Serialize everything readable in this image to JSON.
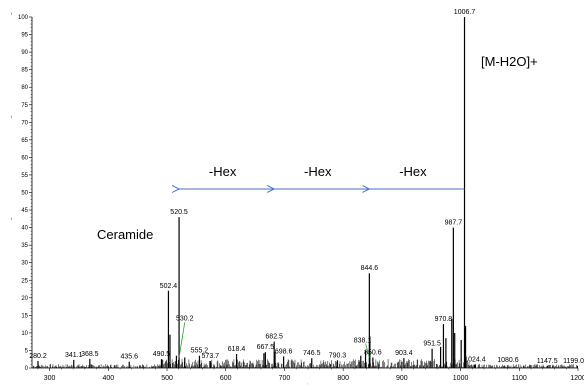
{
  "chart_data": {
    "type": "line",
    "title": "",
    "xlabel": "",
    "ylabel": "",
    "xlim": [
      270,
      1200
    ],
    "ylim": [
      0,
      100
    ],
    "x_ticks": [
      "300",
      "400",
      "500",
      "600",
      "700",
      "800",
      "900",
      "1000",
      "1100",
      "1200"
    ],
    "y_ticks": [
      "0",
      "5",
      "10",
      "15",
      "20",
      "25",
      "30",
      "35",
      "40",
      "45",
      "50",
      "55",
      "60",
      "65",
      "70",
      "75",
      "80",
      "85",
      "90",
      "95",
      "100"
    ],
    "side_labels": [
      "l",
      "l",
      "l"
    ],
    "axis_mark": ",",
    "peaks": [
      {
        "mz": 280.2,
        "intensity": 2.0,
        "label": "280.2"
      },
      {
        "mz": 341.1,
        "intensity": 2.3,
        "label": "341.1"
      },
      {
        "mz": 368.5,
        "intensity": 2.6,
        "label": "368.5"
      },
      {
        "mz": 435.6,
        "intensity": 1.8,
        "label": "435.6"
      },
      {
        "mz": 490.5,
        "intensity": 2.5,
        "label": "490.5"
      },
      {
        "mz": 502.4,
        "intensity": 22.0,
        "label": "502.4"
      },
      {
        "mz": 520.5,
        "intensity": 43.0,
        "label": "520.5"
      },
      {
        "mz": 530.2,
        "intensity": 3.0,
        "label": "530.2"
      },
      {
        "mz": 555.2,
        "intensity": 3.5,
        "label": "555.2"
      },
      {
        "mz": 573.7,
        "intensity": 2.0,
        "label": "573.7"
      },
      {
        "mz": 618.4,
        "intensity": 4.0,
        "label": "618.4"
      },
      {
        "mz": 667.5,
        "intensity": 4.5,
        "label": "667.5"
      },
      {
        "mz": 682.5,
        "intensity": 7.5,
        "label": "682.5"
      },
      {
        "mz": 698.6,
        "intensity": 3.3,
        "label": "698.6"
      },
      {
        "mz": 746.5,
        "intensity": 2.8,
        "label": "746.5"
      },
      {
        "mz": 790.3,
        "intensity": 2.2,
        "label": "790.3"
      },
      {
        "mz": 838.1,
        "intensity": 5.0,
        "label": "838.1"
      },
      {
        "mz": 844.6,
        "intensity": 27.0,
        "label": "844.6"
      },
      {
        "mz": 850.6,
        "intensity": 3.0,
        "label": "850.6"
      },
      {
        "mz": 903.4,
        "intensity": 2.8,
        "label": "903.4"
      },
      {
        "mz": 951.5,
        "intensity": 5.5,
        "label": "951.5"
      },
      {
        "mz": 970.8,
        "intensity": 12.5,
        "label": "970.8"
      },
      {
        "mz": 987.7,
        "intensity": 40.0,
        "label": "987.7"
      },
      {
        "mz": 1006.7,
        "intensity": 100.0,
        "label": "1006.7"
      },
      {
        "mz": 1024.4,
        "intensity": 1.0,
        "label": "1024.4"
      },
      {
        "mz": 1080.6,
        "intensity": 0.8,
        "label": "1080.6"
      },
      {
        "mz": 1147.5,
        "intensity": 0.6,
        "label": "1147.5"
      },
      {
        "mz": 1199.0,
        "intensity": 0.6,
        "label": "1199.0"
      }
    ],
    "minor_peaks": [
      {
        "mz": 505.0,
        "intensity": 9.5
      },
      {
        "mz": 516.0,
        "intensity": 3.5
      },
      {
        "mz": 665.0,
        "intensity": 4.2
      },
      {
        "mz": 684.0,
        "intensity": 4.5
      },
      {
        "mz": 845.5,
        "intensity": 9.0
      },
      {
        "mz": 830.0,
        "intensity": 3.5
      },
      {
        "mz": 966.0,
        "intensity": 6.0
      },
      {
        "mz": 975.0,
        "intensity": 8.5
      },
      {
        "mz": 985.0,
        "intensity": 14.0
      },
      {
        "mz": 990.0,
        "intensity": 10.0
      },
      {
        "mz": 1001.0,
        "intensity": 8.0
      },
      {
        "mz": 1008.5,
        "intensity": 12.0
      }
    ],
    "annotations": {
      "ion_label": "[M-H2O]+",
      "ceramide_label": "Ceramide",
      "hex_labels": [
        "-Hex",
        "-Hex",
        "-Hex"
      ],
      "hex_arrows": [
        {
          "from": 1006.7,
          "to": 844.6
        },
        {
          "from": 844.6,
          "to": 682.5
        },
        {
          "from": 682.5,
          "to": 520.5
        }
      ],
      "hex_arrow_level": 51,
      "leader_lines": [
        {
          "from": [
            530.2,
            13
          ],
          "to": [
            520.5,
            3
          ]
        },
        {
          "from": [
            838.1,
            7.0
          ],
          "to": [
            844.6,
            3
          ]
        }
      ]
    },
    "colors": {
      "spectrum": "#000000",
      "arrow": "#4472C4",
      "leader": "#22AA22"
    },
    "grid": false,
    "legend": "none"
  }
}
